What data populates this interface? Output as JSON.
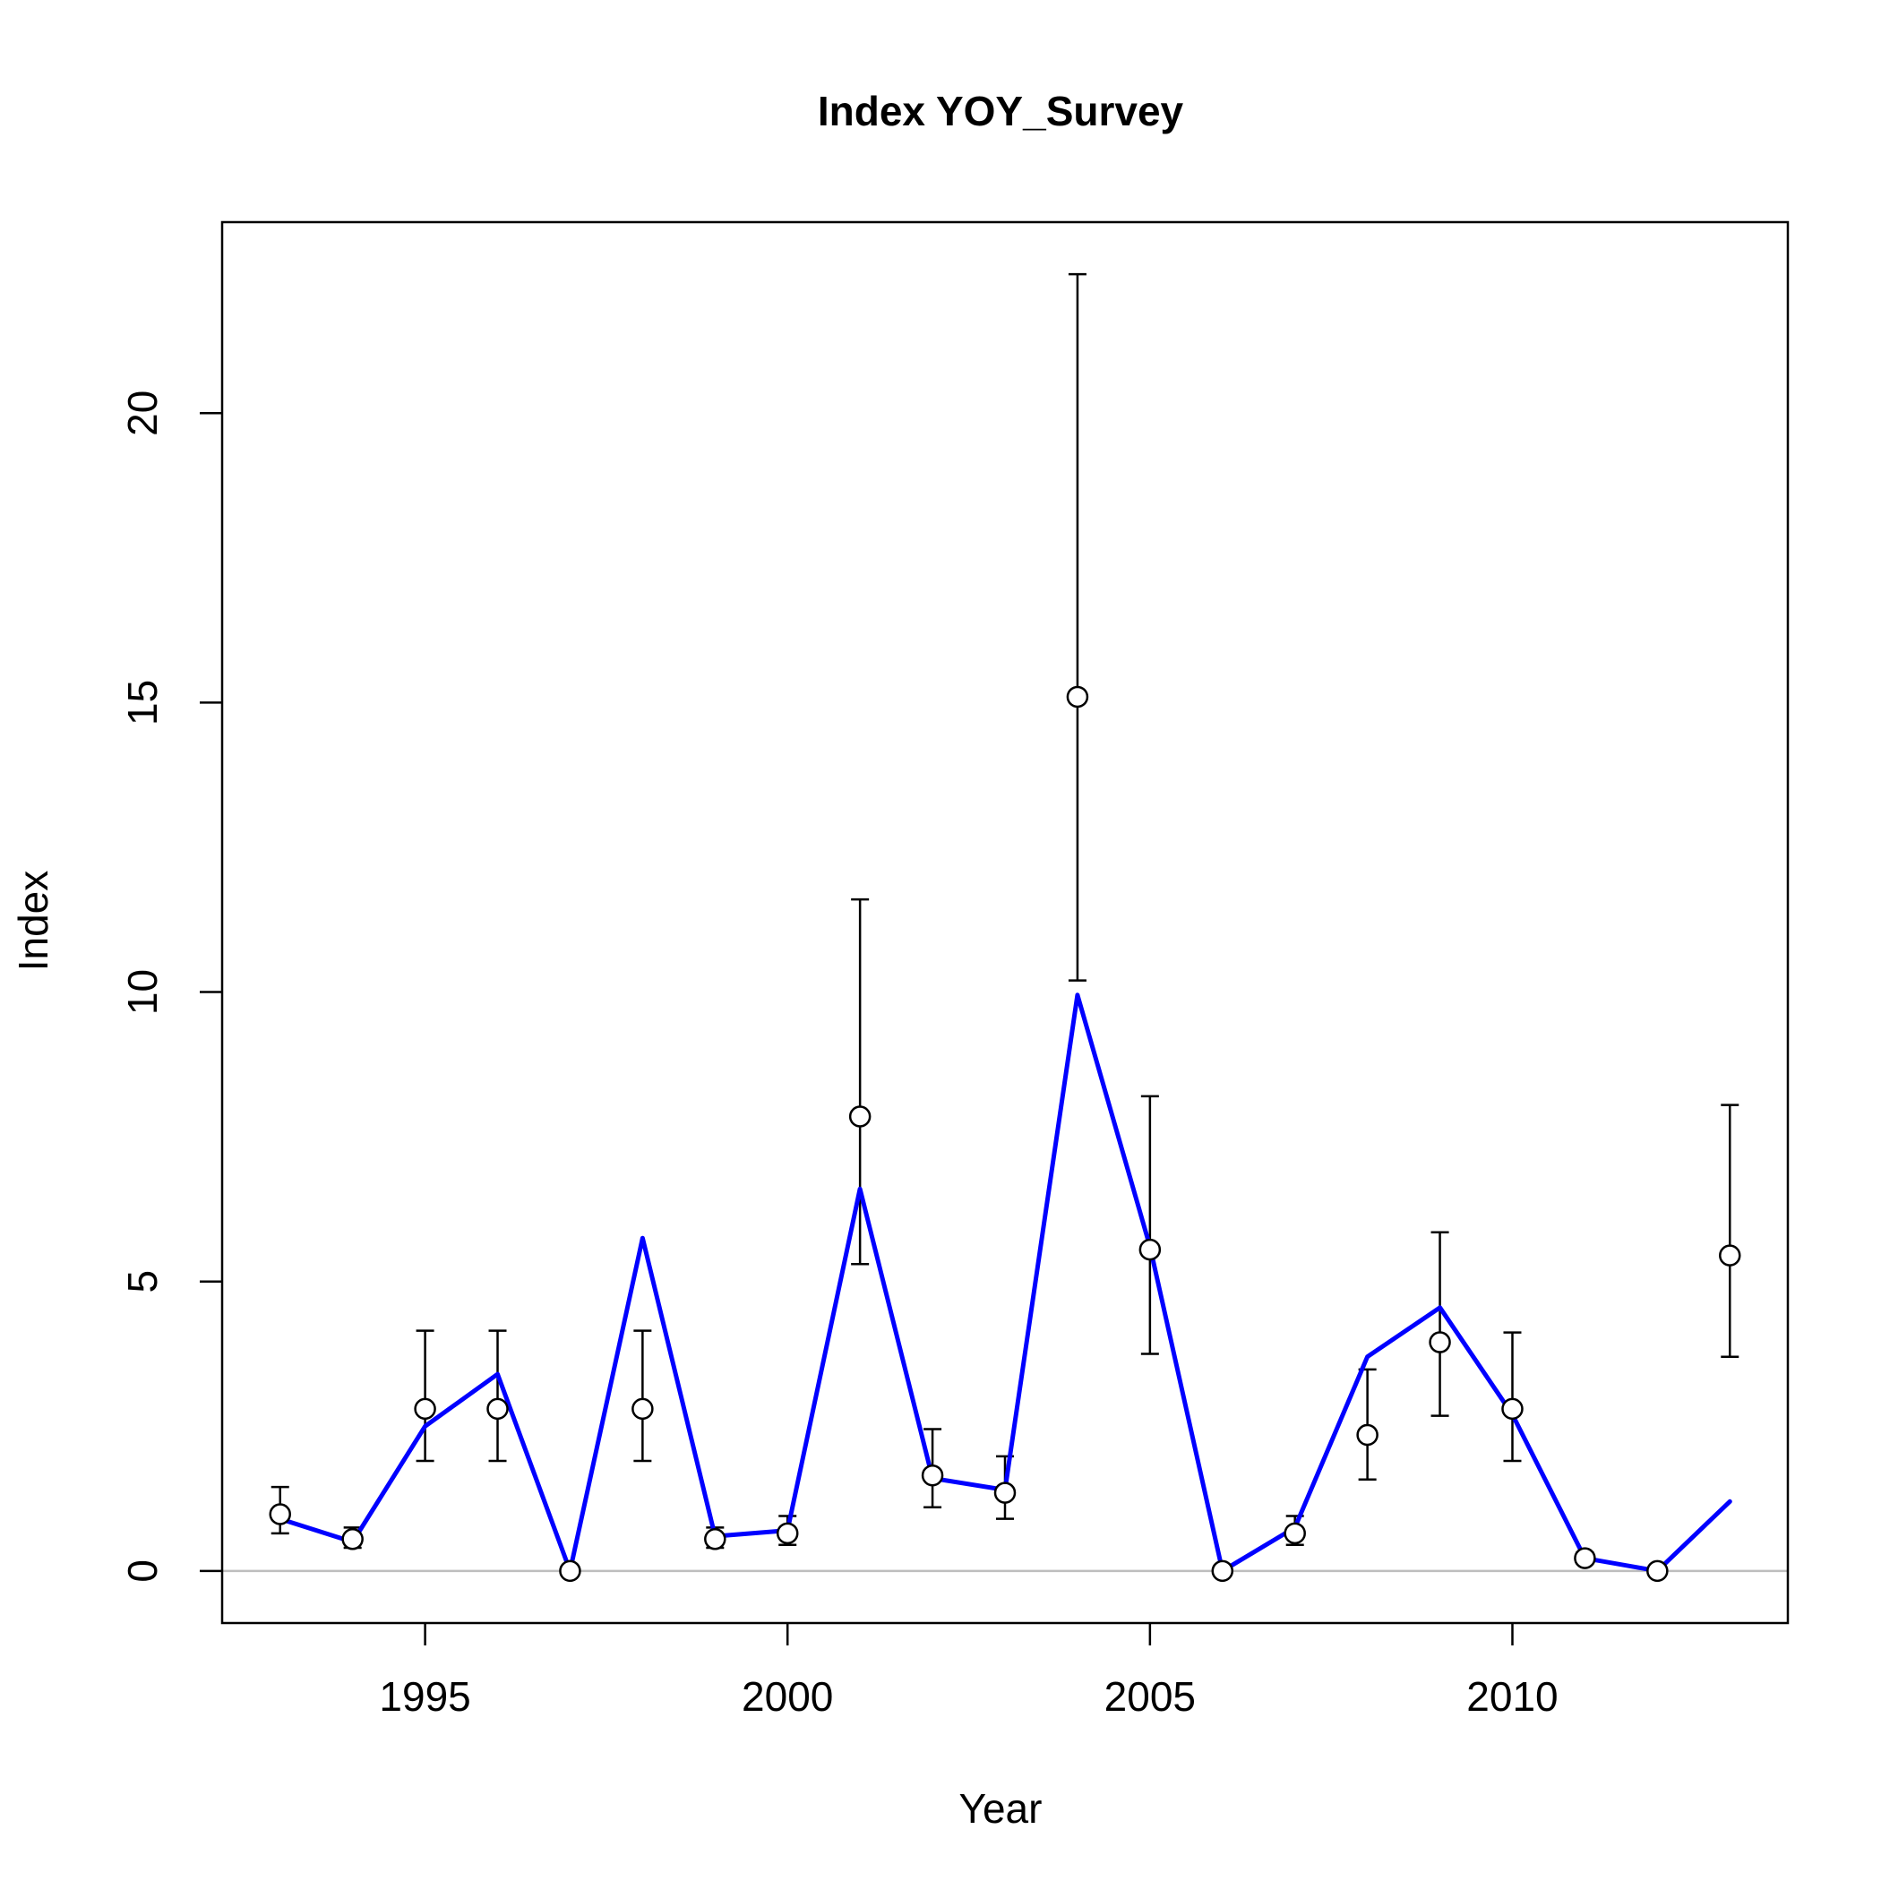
{
  "chart_data": {
    "type": "scatter",
    "title": "Index YOY_Survey",
    "xlabel": "Year",
    "ylabel": "Index",
    "xlim": [
      1992.2,
      2013.8
    ],
    "ylim": [
      -0.9,
      23.3
    ],
    "x_ticks": [
      1995,
      2000,
      2005,
      2010
    ],
    "y_ticks": [
      0,
      5,
      10,
      15,
      20
    ],
    "reference_line": 0,
    "grid": false,
    "legend": "none",
    "colors": {
      "observed": "#000000",
      "fitted": "#0000ff",
      "reference": "#bebebe"
    },
    "x": [
      1993,
      1994,
      1995,
      1996,
      1997,
      1998,
      1999,
      2000,
      2001,
      2002,
      2003,
      2004,
      2005,
      2006,
      2007,
      2008,
      2009,
      2010,
      2011,
      2012,
      2013
    ],
    "series": [
      {
        "type": "points_with_error_bars",
        "values": [
          0.98,
          0.55,
          2.8,
          2.8,
          0.0,
          2.8,
          0.55,
          0.65,
          7.85,
          1.65,
          1.35,
          15.1,
          5.55,
          0.0,
          0.65,
          2.35,
          3.95,
          2.8,
          0.22,
          0.0,
          5.45
        ],
        "lower": [
          0.65,
          0.4,
          1.9,
          1.9,
          0.0,
          1.9,
          0.4,
          0.45,
          5.3,
          1.1,
          0.9,
          10.2,
          3.75,
          0.0,
          0.45,
          1.58,
          2.68,
          1.9,
          0.15,
          0.0,
          3.7
        ],
        "upper": [
          1.45,
          0.75,
          4.15,
          4.15,
          0.0,
          4.15,
          0.75,
          0.95,
          11.6,
          2.45,
          1.98,
          22.4,
          8.2,
          0.0,
          0.95,
          3.48,
          5.85,
          4.12,
          0.32,
          0.0,
          8.05
        ]
      },
      {
        "type": "line",
        "values": [
          0.9,
          0.5,
          2.5,
          3.4,
          0.0,
          5.75,
          0.6,
          0.7,
          6.6,
          1.6,
          1.4,
          9.95,
          5.6,
          0.0,
          0.75,
          3.7,
          4.55,
          2.7,
          0.22,
          0.0,
          1.2
        ]
      }
    ]
  }
}
